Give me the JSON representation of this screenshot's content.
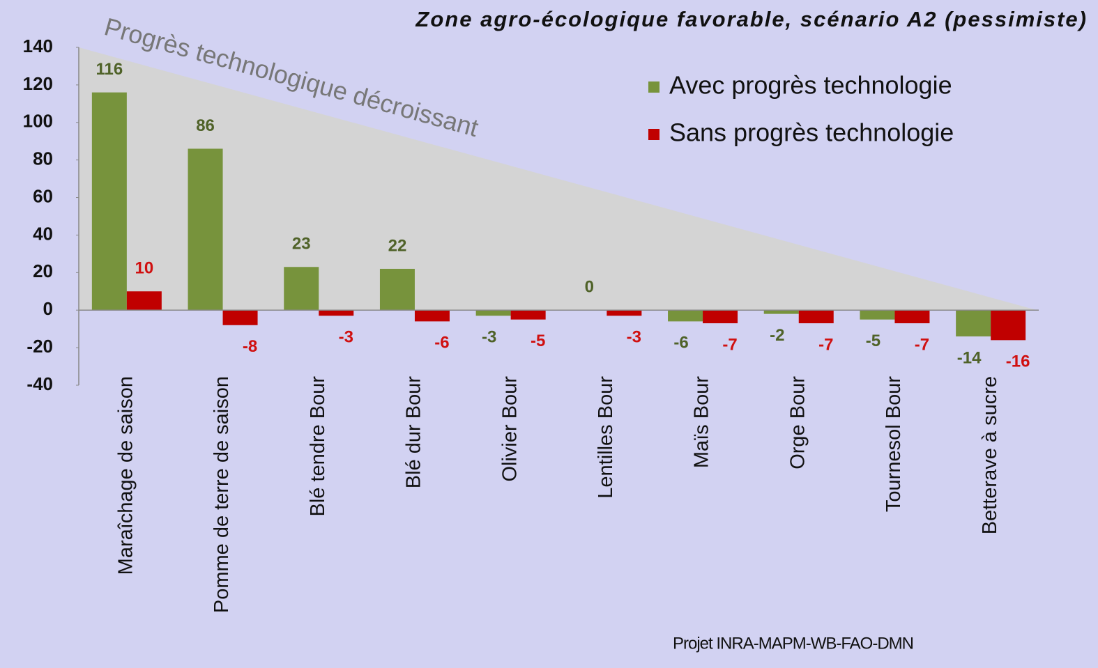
{
  "chart_data": {
    "type": "bar",
    "title": "Zone agro-écologique favorable, scénario A2 (pessimiste)",
    "annotation": "Progrès technologique décroissant",
    "footer": "Projet INRA-MAPM-WB-FAO-DMN",
    "categories": [
      "Maraîchage de saison",
      "Pomme de terre de saison",
      "Blé tendre Bour",
      "Blé dur Bour",
      "Olivier Bour",
      "Lentilles Bour",
      "Maïs Bour",
      "Orge Bour",
      "Tournesol Bour",
      "Betterave à sucre"
    ],
    "series": [
      {
        "name": "Avec progrès technologie",
        "color": "#77933c",
        "label_color": "#4f6228",
        "values": [
          116,
          86,
          23,
          22,
          -3,
          0,
          -6,
          -2,
          -5,
          -14
        ]
      },
      {
        "name": "Sans progrès technologie",
        "color": "#c00000",
        "label_color": "#d01010",
        "values": [
          10,
          -8,
          -3,
          -6,
          -5,
          -3,
          -7,
          -7,
          -7,
          -16
        ]
      }
    ],
    "ylim": [
      -40,
      140
    ],
    "yticks": [
      -40,
      -20,
      0,
      20,
      40,
      60,
      80,
      100,
      120,
      140
    ],
    "legend": "top-right"
  }
}
